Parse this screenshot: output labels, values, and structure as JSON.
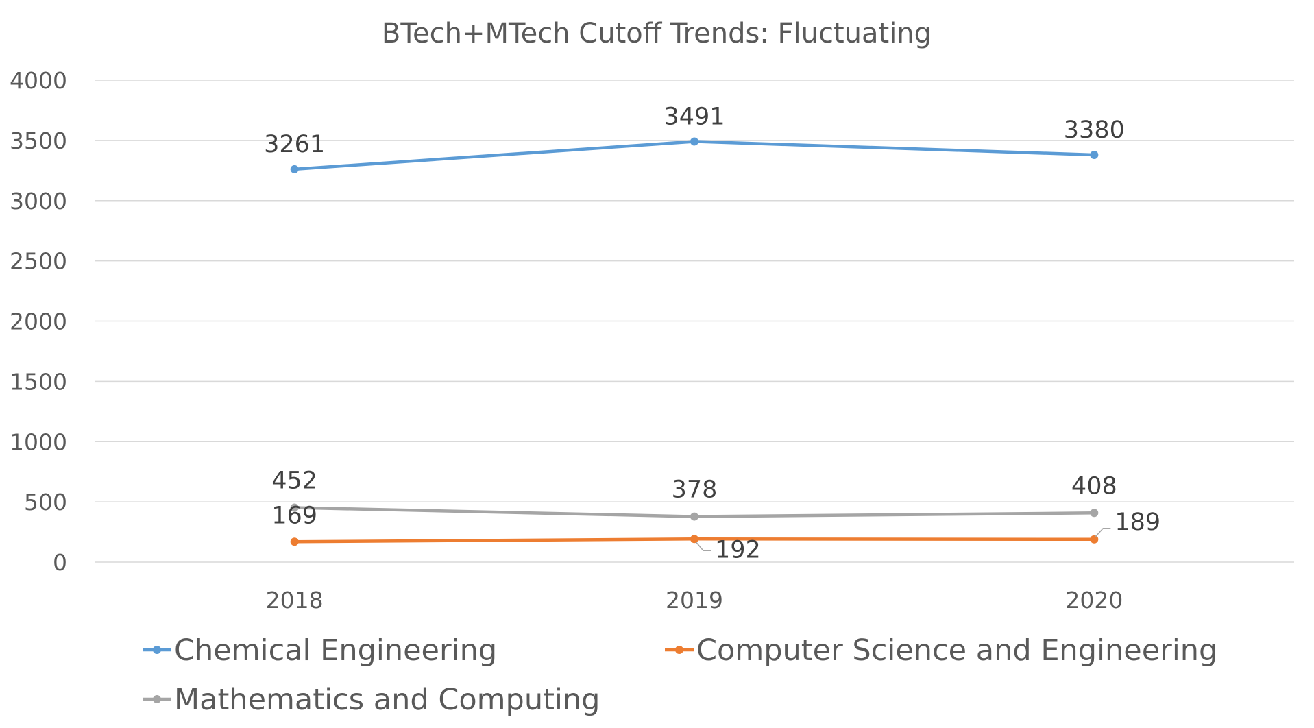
{
  "chart_data": {
    "type": "line",
    "title": "BTech+MTech Cutoff Trends: Fluctuating",
    "categories": [
      "2018",
      "2019",
      "2020"
    ],
    "ylim": [
      0,
      4000
    ],
    "ytick_step": 500,
    "yticks": [
      "0",
      "500",
      "1000",
      "1500",
      "2000",
      "2500",
      "3000",
      "3500",
      "4000"
    ],
    "xlabel": "",
    "ylabel": "",
    "grid": true,
    "legend_position": "bottom",
    "series": [
      {
        "name": "Chemical Engineering",
        "color": "#5b9bd5",
        "values": [
          3261,
          3491,
          3380
        ],
        "labels": [
          "3261",
          "3491",
          "3380"
        ]
      },
      {
        "name": "Computer Science and Engineering",
        "color": "#ed7d31",
        "values": [
          169,
          192,
          189
        ],
        "labels": [
          "169",
          "192",
          "189"
        ]
      },
      {
        "name": "Mathematics and Computing",
        "color": "#a5a5a5",
        "values": [
          452,
          378,
          408
        ],
        "labels": [
          "452",
          "378",
          "408"
        ]
      }
    ]
  }
}
